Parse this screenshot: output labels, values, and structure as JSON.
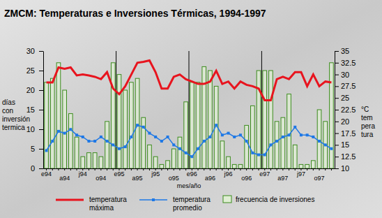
{
  "chart_data": {
    "type": "bar",
    "title": "ZMCM: Temperaturas e Inversiones Térmicas, 1994-1997",
    "x_label": "mes/año",
    "y_label": [
      "días",
      "con",
      "inversión",
      "termica"
    ],
    "y2_label": [
      "°C",
      "tem",
      "pera",
      "tura"
    ],
    "categories": [
      "e94",
      null,
      null,
      "a94",
      null,
      null,
      "j94",
      null,
      null,
      "o94",
      null,
      null,
      "e95",
      null,
      null,
      "a95",
      null,
      null,
      "j95",
      null,
      null,
      "o95",
      null,
      null,
      "e96",
      null,
      null,
      "a96",
      null,
      null,
      "j96",
      null,
      null,
      "o96",
      null,
      null,
      "e97",
      null,
      null,
      "a97",
      null,
      null,
      "j97",
      null,
      null,
      "o97",
      null,
      null
    ],
    "ylim": [
      0,
      30
    ],
    "yticks": [
      0,
      5,
      10,
      15,
      20,
      25,
      30
    ],
    "y2lim": [
      10,
      35
    ],
    "y2ticks": [
      10,
      12.5,
      15,
      17.5,
      20,
      22.5,
      25,
      27.5,
      30,
      32.5,
      35
    ],
    "legend": "bottom",
    "series": [
      {
        "name": "temperatura máxima",
        "type": "line",
        "axis": "y2",
        "color": "#e8141e",
        "line_style": "solid",
        "marker": "none",
        "values": [
          28.3,
          28.3,
          31.5,
          31.2,
          31.5,
          29.8,
          30,
          29.8,
          29.5,
          29,
          30.5,
          27,
          25.8,
          27.5,
          30,
          32.5,
          32.7,
          33,
          30.5,
          27,
          27,
          29.5,
          30,
          29,
          28.5,
          28,
          28,
          28.5,
          30.8,
          28,
          28.5,
          27,
          28.5,
          27.8,
          27.5,
          27,
          24.5,
          24.5,
          29,
          29.5,
          29,
          30.5,
          30.5,
          27.5,
          30,
          27.5,
          28.5,
          28.3
        ]
      },
      {
        "name": "temperatura promedio",
        "type": "line",
        "axis": "y2",
        "color": "#1e78e6",
        "line_style": "solid",
        "marker": "square",
        "values": [
          13.8,
          15.8,
          17.9,
          17.5,
          18.3,
          17.1,
          16.7,
          15.8,
          15.8,
          16.7,
          15.8,
          15,
          14.2,
          14.6,
          16.7,
          19.2,
          18.8,
          17.5,
          16.7,
          15.8,
          16.7,
          15,
          14.2,
          13.3,
          12.5,
          14.2,
          15.8,
          16.7,
          19.2,
          17.1,
          17.5,
          16.7,
          17.1,
          15.8,
          13.3,
          12.9,
          12.9,
          15,
          15.8,
          16.7,
          17.1,
          18.8,
          17.1,
          17.1,
          16.7,
          15.8,
          15,
          14.2
        ]
      },
      {
        "name": "frecuencia de inversiones",
        "type": "bar",
        "axis": "y",
        "color": "#3c8c1e",
        "values": [
          22,
          23,
          27,
          20,
          14,
          8,
          3,
          4,
          4,
          3,
          12,
          27,
          24,
          20,
          22,
          23,
          13,
          6,
          3,
          1,
          2,
          5,
          8,
          17,
          22,
          22,
          26,
          25,
          21,
          7,
          3,
          1,
          1,
          11,
          16,
          25,
          25,
          25,
          12,
          13,
          19,
          6,
          1,
          1,
          2,
          15,
          12,
          27
        ]
      }
    ]
  }
}
